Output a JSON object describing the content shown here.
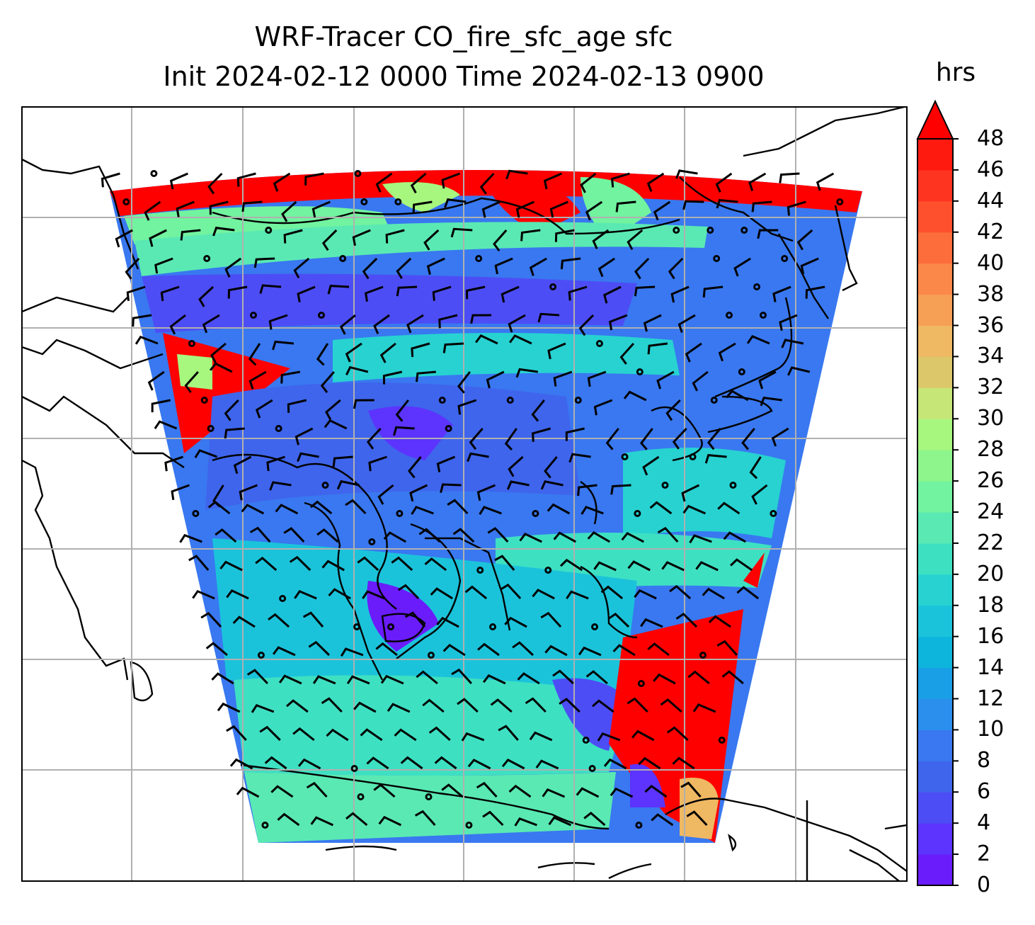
{
  "title": {
    "line1": "WRF-Tracer CO_fire_sfc_age sfc",
    "line2": "Init 2024-02-12 0000 Time 2024-02-13 0900"
  },
  "colorbar": {
    "unit": "hrs",
    "ticks": [
      "0",
      "2",
      "4",
      "6",
      "8",
      "10",
      "12",
      "14",
      "16",
      "18",
      "20",
      "22",
      "24",
      "26",
      "28",
      "30",
      "32",
      "34",
      "36",
      "38",
      "40",
      "42",
      "44",
      "46",
      "48"
    ],
    "extend": "max",
    "colors": [
      "#6a1cfb",
      "#5c34fd",
      "#4d4df5",
      "#3f65ec",
      "#3978f0",
      "#2a8fed",
      "#199fe5",
      "#0db4dc",
      "#1bc3da",
      "#27d2d1",
      "#3ee0c2",
      "#5ae9b3",
      "#72f39f",
      "#8ef58c",
      "#a7f77e",
      "#c6e678",
      "#dcc86a",
      "#efb862",
      "#f6a055",
      "#fb8849",
      "#fd6d3c",
      "#fe502d",
      "#ff3420",
      "#ff1a10",
      "#ff0000"
    ]
  },
  "colors": {
    "land_line": "#000000",
    "grid": "#b0b0b0",
    "high_age": "#ff0000"
  }
}
